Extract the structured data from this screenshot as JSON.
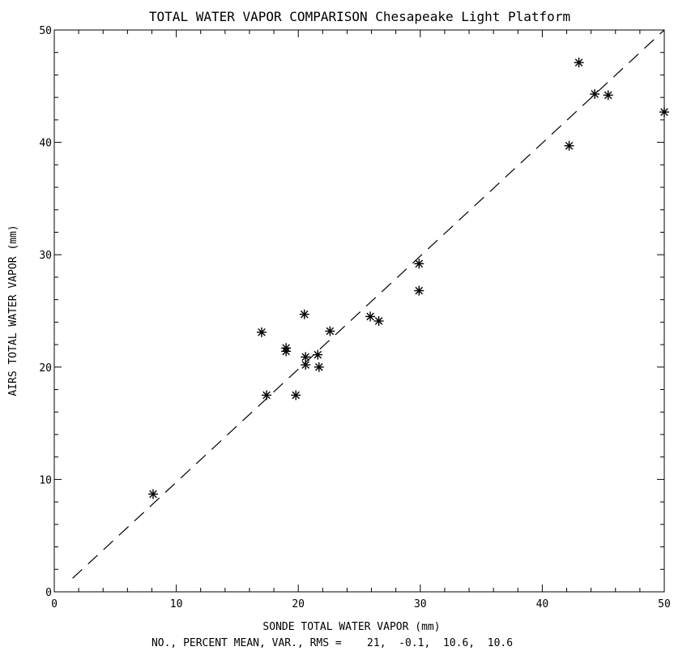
{
  "chart_data": {
    "type": "scatter",
    "title": "TOTAL WATER VAPOR COMPARISON Chesapeake Light Platform",
    "xlabel": "SONDE TOTAL WATER VAPOR (mm)",
    "ylabel": "AIRS TOTAL WATER VAPOR (mm)",
    "stats_line": "NO., PERCENT MEAN, VAR., RMS =    21,  -0.1,  10.6,  10.6",
    "xlim": [
      0,
      50
    ],
    "ylim": [
      0,
      50
    ],
    "x_ticks": [
      0,
      10,
      20,
      30,
      40,
      50
    ],
    "y_ticks": [
      0,
      10,
      20,
      30,
      40,
      50
    ],
    "minor_ticks_per_major": 5,
    "grid": false,
    "marker": "asterisk",
    "points": [
      {
        "x": 8.1,
        "y": 8.7
      },
      {
        "x": 17.0,
        "y": 23.1
      },
      {
        "x": 17.4,
        "y": 17.5
      },
      {
        "x": 19.0,
        "y": 21.7
      },
      {
        "x": 19.0,
        "y": 21.4
      },
      {
        "x": 19.8,
        "y": 17.5
      },
      {
        "x": 20.5,
        "y": 24.7
      },
      {
        "x": 20.6,
        "y": 20.9
      },
      {
        "x": 20.6,
        "y": 20.2
      },
      {
        "x": 21.6,
        "y": 21.1
      },
      {
        "x": 21.7,
        "y": 20.0
      },
      {
        "x": 22.6,
        "y": 23.2
      },
      {
        "x": 25.9,
        "y": 24.5
      },
      {
        "x": 26.6,
        "y": 24.1
      },
      {
        "x": 29.9,
        "y": 29.2
      },
      {
        "x": 29.9,
        "y": 26.8
      },
      {
        "x": 42.2,
        "y": 39.7
      },
      {
        "x": 43.0,
        "y": 47.1
      },
      {
        "x": 44.3,
        "y": 44.3
      },
      {
        "x": 45.4,
        "y": 44.2
      },
      {
        "x": 50.0,
        "y": 42.7
      }
    ],
    "reference_line": {
      "style": "dashed",
      "x": [
        1.5,
        50
      ],
      "y": [
        1.2,
        50
      ]
    }
  }
}
